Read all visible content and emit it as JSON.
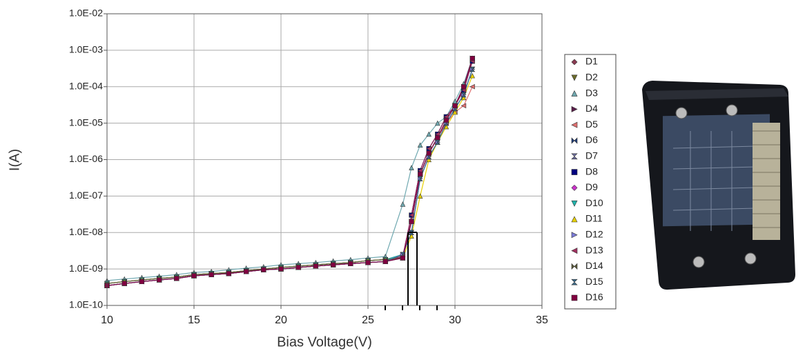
{
  "chart_data": {
    "type": "line",
    "x_label": "Bias Voltage(V)",
    "y_label": "I(A)",
    "xlim": [
      10,
      35
    ],
    "xticks": [
      10,
      15,
      20,
      25,
      30,
      35
    ],
    "ylim": [
      1e-10,
      0.01
    ],
    "y_scale": "log",
    "yticks": [
      {
        "value": 1e-10,
        "label": "1.0E-10"
      },
      {
        "value": 1e-09,
        "label": "1.0E-09"
      },
      {
        "value": 1e-08,
        "label": "1.0E-08"
      },
      {
        "value": 1e-07,
        "label": "1.0E-07"
      },
      {
        "value": 1e-06,
        "label": "1.0E-06"
      },
      {
        "value": 1e-05,
        "label": "1.0E-05"
      },
      {
        "value": 0.0001,
        "label": "1.0E-04"
      },
      {
        "value": 0.001,
        "label": "1.0E-03"
      },
      {
        "value": 0.01,
        "label": "1.0E-02"
      }
    ],
    "grid": true,
    "legend": "right",
    "x": [
      10,
      11,
      12,
      13,
      14,
      15,
      16,
      17,
      18,
      19,
      20,
      21,
      22,
      23,
      24,
      25,
      26,
      27,
      27.5,
      28,
      28.5,
      29,
      29.5,
      30,
      30.5,
      31
    ],
    "series": [
      {
        "name": "D1",
        "color": "#8b3a52",
        "marker": "diamond",
        "values": [
          4e-10,
          4.5e-10,
          5e-10,
          5.5e-10,
          6e-10,
          7e-10,
          7.5e-10,
          8e-10,
          9e-10,
          1e-09,
          1.1e-09,
          1.2e-09,
          1.3e-09,
          1.4e-09,
          1.5e-09,
          1.7e-09,
          1.8e-09,
          2.2e-09,
          3e-08,
          5e-07,
          2e-06,
          5e-06,
          1.5e-05,
          3e-05,
          8e-05,
          0.0005
        ]
      },
      {
        "name": "D2",
        "color": "#6b6b2a",
        "marker": "tri-down",
        "values": [
          4e-10,
          4.5e-10,
          5e-10,
          5.5e-10,
          6e-10,
          7e-10,
          7.5e-10,
          8e-10,
          9e-10,
          1e-09,
          1.1e-09,
          1.2e-09,
          1.3e-09,
          1.4e-09,
          1.5e-09,
          1.7e-09,
          1.8e-09,
          2e-09,
          2e-08,
          4e-07,
          1.5e-06,
          4e-06,
          1.2e-05,
          3e-05,
          0.0001,
          0.0006
        ]
      },
      {
        "name": "D3",
        "color": "#6fa8b0",
        "marker": "tri-up",
        "values": [
          4.8e-10,
          5.3e-10,
          5.8e-10,
          6.3e-10,
          7e-10,
          8e-10,
          8.5e-10,
          9.5e-10,
          1.05e-09,
          1.15e-09,
          1.3e-09,
          1.4e-09,
          1.5e-09,
          1.65e-09,
          1.8e-09,
          2e-09,
          2.2e-09,
          6e-08,
          6e-07,
          2.5e-06,
          5e-06,
          1e-05,
          1.5e-05,
          4e-05,
          0.00012,
          0.0006
        ]
      },
      {
        "name": "D4",
        "color": "#5a1e4a",
        "marker": "tri-right",
        "values": [
          3.5e-10,
          4e-10,
          4.5e-10,
          5e-10,
          5.5e-10,
          6.5e-10,
          7e-10,
          7.5e-10,
          8.5e-10,
          9.5e-10,
          1e-09,
          1.1e-09,
          1.2e-09,
          1.3e-09,
          1.4e-09,
          1.5e-09,
          1.6e-09,
          2.2e-09,
          3e-08,
          5e-07,
          2e-06,
          5e-06,
          1.5e-05,
          3e-05,
          8e-05,
          0.0005
        ]
      },
      {
        "name": "D5",
        "color": "#e07070",
        "marker": "tri-left",
        "values": [
          4e-10,
          4.5e-10,
          5e-10,
          5.5e-10,
          6e-10,
          7e-10,
          7.5e-10,
          8e-10,
          9e-10,
          1e-09,
          1.1e-09,
          1.2e-09,
          1.3e-09,
          1.4e-09,
          1.5e-09,
          1.7e-09,
          1.8e-09,
          2.4e-09,
          2e-08,
          4e-07,
          1.5e-06,
          4e-06,
          1e-05,
          2e-05,
          3e-05,
          0.0001
        ]
      },
      {
        "name": "D6",
        "color": "#1e3c78",
        "marker": "bowtie",
        "values": [
          3.5e-10,
          4e-10,
          4.5e-10,
          5e-10,
          5.5e-10,
          6.5e-10,
          7e-10,
          7.5e-10,
          8.5e-10,
          9.5e-10,
          1e-09,
          1.1e-09,
          1.2e-09,
          1.3e-09,
          1.4e-09,
          1.5e-09,
          1.6e-09,
          2e-09,
          2e-08,
          4e-07,
          1.5e-06,
          4e-06,
          1.2e-05,
          3e-05,
          0.0001,
          0.0006
        ]
      },
      {
        "name": "D7",
        "color": "#6a6a9a",
        "marker": "hourglass",
        "values": [
          4e-10,
          4.5e-10,
          5e-10,
          5.5e-10,
          6e-10,
          7e-10,
          7.5e-10,
          8e-10,
          9e-10,
          1e-09,
          1.1e-09,
          1.2e-09,
          1.3e-09,
          1.4e-09,
          1.5e-09,
          1.7e-09,
          1.8e-09,
          2.5e-09,
          1e-08,
          3e-07,
          1.2e-06,
          3e-06,
          1e-05,
          2.5e-05,
          6e-05,
          0.0003
        ]
      },
      {
        "name": "D8",
        "color": "#000080",
        "marker": "square",
        "values": [
          3.5e-10,
          4e-10,
          4.5e-10,
          5e-10,
          5.5e-10,
          6.5e-10,
          7e-10,
          7.5e-10,
          8.5e-10,
          9.5e-10,
          1e-09,
          1.1e-09,
          1.2e-09,
          1.3e-09,
          1.4e-09,
          1.5e-09,
          1.6e-09,
          2.2e-09,
          3e-08,
          5e-07,
          2e-06,
          5e-06,
          1.5e-05,
          3e-05,
          8e-05,
          0.0005
        ]
      },
      {
        "name": "D9",
        "color": "#cc33cc",
        "marker": "diamond",
        "values": [
          4e-10,
          4.5e-10,
          5e-10,
          5.5e-10,
          6e-10,
          7e-10,
          7.5e-10,
          8e-10,
          9e-10,
          1e-09,
          1.1e-09,
          1.2e-09,
          1.3e-09,
          1.4e-09,
          1.5e-09,
          1.7e-09,
          1.8e-09,
          2e-09,
          2e-08,
          4e-07,
          1.5e-06,
          4e-06,
          1.2e-05,
          3e-05,
          0.0001,
          0.0006
        ]
      },
      {
        "name": "D10",
        "color": "#20b2aa",
        "marker": "tri-down",
        "values": [
          4e-10,
          4.5e-10,
          5e-10,
          5.5e-10,
          6e-10,
          7e-10,
          7.5e-10,
          8e-10,
          9e-10,
          1e-09,
          1.1e-09,
          1.2e-09,
          1.3e-09,
          1.4e-09,
          1.5e-09,
          1.7e-09,
          1.8e-09,
          2.5e-09,
          1e-08,
          3e-07,
          1.2e-06,
          3e-06,
          1e-05,
          2.5e-05,
          6e-05,
          0.0003
        ]
      },
      {
        "name": "D11",
        "color": "#e6d000",
        "marker": "tri-up",
        "values": [
          4e-10,
          4.5e-10,
          5e-10,
          5.5e-10,
          6e-10,
          7e-10,
          7.5e-10,
          8e-10,
          9e-10,
          1e-09,
          1.1e-09,
          1.2e-09,
          1.3e-09,
          1.4e-09,
          1.5e-09,
          1.7e-09,
          1.8e-09,
          2e-09,
          8e-09,
          1e-07,
          1e-06,
          3e-06,
          8e-06,
          2e-05,
          5e-05,
          0.0002
        ]
      },
      {
        "name": "D12",
        "color": "#7b7bd8",
        "marker": "tri-right",
        "values": [
          3.5e-10,
          4e-10,
          4.5e-10,
          5e-10,
          5.5e-10,
          6.5e-10,
          7e-10,
          7.5e-10,
          8.5e-10,
          9.5e-10,
          1e-09,
          1.1e-09,
          1.2e-09,
          1.3e-09,
          1.4e-09,
          1.5e-09,
          1.6e-09,
          2.5e-09,
          1e-08,
          3e-07,
          1.2e-06,
          3e-06,
          1e-05,
          2.5e-05,
          6e-05,
          0.0003
        ]
      },
      {
        "name": "D13",
        "color": "#a03060",
        "marker": "tri-left",
        "values": [
          3.5e-10,
          4e-10,
          4.5e-10,
          5e-10,
          5.5e-10,
          6.5e-10,
          7e-10,
          7.5e-10,
          8.5e-10,
          9.5e-10,
          1e-09,
          1.1e-09,
          1.2e-09,
          1.3e-09,
          1.4e-09,
          1.5e-09,
          1.6e-09,
          2.2e-09,
          3e-08,
          5e-07,
          2e-06,
          5e-06,
          1.5e-05,
          3e-05,
          8e-05,
          0.0005
        ]
      },
      {
        "name": "D14",
        "color": "#5a5a3a",
        "marker": "bowtie",
        "values": [
          4e-10,
          4.5e-10,
          5e-10,
          5.5e-10,
          6e-10,
          7e-10,
          7.5e-10,
          8e-10,
          9e-10,
          1e-09,
          1.1e-09,
          1.2e-09,
          1.3e-09,
          1.4e-09,
          1.5e-09,
          1.7e-09,
          1.8e-09,
          2e-09,
          2e-08,
          4e-07,
          1.5e-06,
          4e-06,
          1.2e-05,
          3e-05,
          0.0001,
          0.0006
        ]
      },
      {
        "name": "D15",
        "color": "#3a6a8a",
        "marker": "hourglass",
        "values": [
          3.5e-10,
          4e-10,
          4.5e-10,
          5e-10,
          5.5e-10,
          6.5e-10,
          7e-10,
          7.5e-10,
          8.5e-10,
          9.5e-10,
          1e-09,
          1.1e-09,
          1.2e-09,
          1.3e-09,
          1.4e-09,
          1.5e-09,
          1.6e-09,
          2.5e-09,
          1e-08,
          3e-07,
          1.2e-06,
          3e-06,
          1e-05,
          2.5e-05,
          6e-05,
          0.0003
        ]
      },
      {
        "name": "D16",
        "color": "#800040",
        "marker": "square",
        "values": [
          3.5e-10,
          4e-10,
          4.5e-10,
          5e-10,
          5.5e-10,
          6.5e-10,
          7e-10,
          7.5e-10,
          8.5e-10,
          9.5e-10,
          1e-09,
          1.1e-09,
          1.2e-09,
          1.3e-09,
          1.4e-09,
          1.5e-09,
          1.6e-09,
          2e-09,
          2e-08,
          4e-07,
          1.5e-06,
          4e-06,
          1.2e-05,
          3e-05,
          0.0001,
          0.0006
        ]
      }
    ]
  }
}
